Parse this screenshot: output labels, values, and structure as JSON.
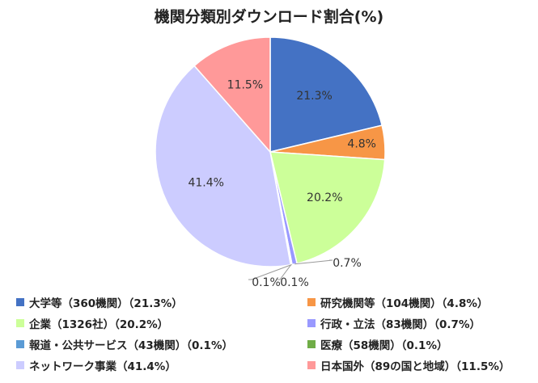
{
  "chart_data": {
    "type": "pie",
    "title": "機関分類別ダウンロード割合(%)",
    "slices": [
      {
        "label": "大学等（360機関）（21.3%）",
        "value": 21.3,
        "data_label": "21.3%",
        "color": "#4472C4"
      },
      {
        "label": "研究機関等（104機関）（4.8%）",
        "value": 4.8,
        "data_label": "4.8%",
        "color": "#F79646"
      },
      {
        "label": "企業（1326社）（20.2%）",
        "value": 20.2,
        "data_label": "20.2%",
        "color": "#CCFF99"
      },
      {
        "label": "行政・立法（83機関）（0.7%）",
        "value": 0.7,
        "data_label": "0.7%",
        "color": "#9999FF"
      },
      {
        "label": "報道・公共サービス（43機関）（0.1%）",
        "value": 0.1,
        "data_label": "0.1%",
        "color": "#5B9BD5"
      },
      {
        "label": "医療（58機関）（0.1%）",
        "value": 0.1,
        "data_label": "0.1%",
        "color": "#70AD47"
      },
      {
        "label": "ネットワーク事業（41.4%）",
        "value": 41.4,
        "data_label": "41.4%",
        "color": "#CCCCFF"
      },
      {
        "label": "日本国外（89の国と地域）（11.5%）",
        "value": 11.5,
        "data_label": "11.5%",
        "color": "#FF9999"
      }
    ],
    "legend_placement": "bottom"
  }
}
